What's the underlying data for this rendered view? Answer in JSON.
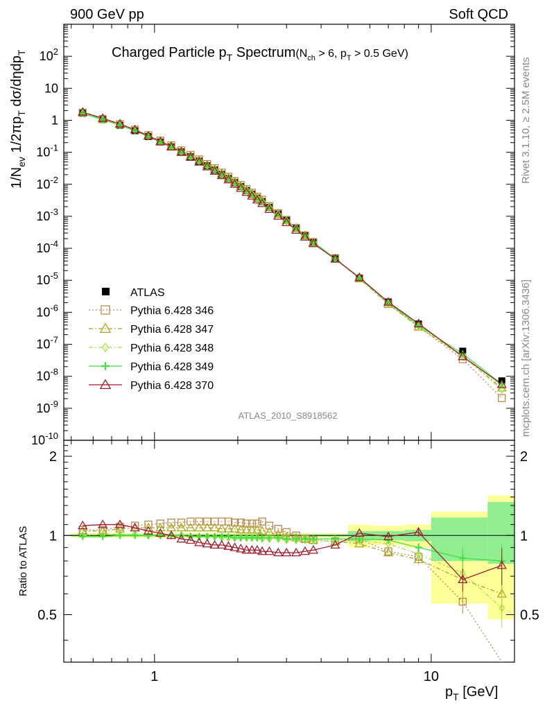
{
  "header": {
    "left": "900 GeV pp",
    "right": "Soft QCD"
  },
  "side_labels": {
    "rivet": "Rivet 3.1.10, ≥ 2.5M events",
    "mcplots": "mcplots.cern.ch [arXiv:1306.3436]"
  },
  "chart_data": {
    "type": "scatter",
    "title": "Charged Particle p_T Spectrum",
    "subtitle": "(N_ch > 6, p_T > 0.5 GeV)",
    "analysis": "ATLAS_2010_S8918562",
    "xlabel": "p_T  [GeV]",
    "ylabel": "1/N_ev 1/2πp_T dσ/dηdp_T",
    "ratio_ylabel": "Ratio to ATLAS",
    "xscale": "log",
    "xlim": [
      0.47,
      20
    ],
    "ylim": [
      1e-10,
      1000
    ],
    "ratio_ylim": [
      0.33,
      2.3
    ],
    "x_ticks": [
      "1",
      "10"
    ],
    "y_ticks": [
      "10^-10",
      "10^-9",
      "10^-8",
      "10^-7",
      "10^-6",
      "10^-5",
      "10^-4",
      "10^-3",
      "10^-2",
      "10^-1",
      "1",
      "10",
      "10^2"
    ],
    "ratio_ticks": [
      "0.5",
      "1",
      "2"
    ],
    "legend_position": "lower-left",
    "x": [
      0.55,
      0.65,
      0.75,
      0.85,
      0.95,
      1.05,
      1.15,
      1.25,
      1.35,
      1.45,
      1.55,
      1.65,
      1.75,
      1.85,
      1.95,
      2.05,
      2.15,
      2.25,
      2.35,
      2.45,
      2.6,
      2.8,
      3.0,
      3.25,
      3.5,
      3.75,
      4.5,
      5.5,
      7.0,
      9.0,
      13.0,
      18.0
    ],
    "atlas": [
      1.65,
      1.05,
      0.7,
      0.47,
      0.31,
      0.21,
      0.147,
      0.103,
      0.073,
      0.053,
      0.038,
      0.028,
      0.0205,
      0.0152,
      0.0113,
      0.0085,
      0.0064,
      0.0049,
      0.0037,
      0.0029,
      0.0019,
      0.00118,
      0.00075,
      0.00043,
      0.00026,
      0.00016,
      5e-05,
      1.2e-05,
      2.1e-06,
      4.3e-07,
      6.1e-08,
      7.2e-09
    ],
    "atlas_band": {
      "edges": [
        0.5,
        5,
        6,
        8,
        10,
        16,
        20
      ],
      "yellow_lo": [
        0.98,
        0.9,
        0.92,
        0.9,
        0.55,
        0.48
      ],
      "yellow_hi": [
        1.02,
        1.1,
        1.09,
        1.1,
        1.23,
        1.42
      ],
      "green_lo": [
        0.99,
        0.95,
        0.96,
        0.95,
        0.8,
        0.78
      ],
      "green_hi": [
        1.01,
        1.04,
        1.04,
        1.05,
        1.17,
        1.34
      ]
    },
    "series": [
      {
        "name": "Pythia 6.428 346",
        "color": "#b8884c",
        "marker": "square",
        "dash": "2,3",
        "ratio": [
          1.05,
          1.05,
          1.08,
          1.09,
          1.1,
          1.11,
          1.12,
          1.12,
          1.13,
          1.13,
          1.13,
          1.13,
          1.13,
          1.13,
          1.12,
          1.12,
          1.11,
          1.11,
          1.11,
          1.13,
          1.09,
          1.06,
          1.03,
          1.0,
          0.97,
          0.96,
          0.95,
          0.97,
          0.87,
          0.83,
          0.56,
          0.29
        ]
      },
      {
        "name": "Pythia 6.428 347",
        "color": "#a8a820",
        "marker": "triangle",
        "dash": "6,3,2,3",
        "ratio": [
          1.04,
          1.04,
          1.06,
          1.07,
          1.07,
          1.07,
          1.07,
          1.07,
          1.07,
          1.07,
          1.07,
          1.07,
          1.06,
          1.06,
          1.06,
          1.05,
          1.05,
          1.05,
          1.05,
          1.04,
          1.03,
          1.01,
          0.99,
          0.98,
          0.97,
          0.96,
          0.95,
          0.93,
          0.86,
          0.81,
          0.68,
          0.6
        ]
      },
      {
        "name": "Pythia 6.428 348",
        "color": "#a8e040",
        "marker": "diamond",
        "dash": "6,3,2,3",
        "ratio": [
          1.0,
          1.01,
          1.01,
          1.01,
          1.0,
          1.0,
          1.0,
          1.0,
          0.99,
          0.99,
          0.99,
          0.99,
          0.98,
          0.98,
          0.98,
          0.98,
          0.98,
          0.98,
          0.98,
          0.97,
          0.97,
          0.97,
          0.96,
          0.96,
          0.96,
          0.96,
          0.95,
          0.96,
          0.93,
          0.85,
          0.72,
          0.53
        ]
      },
      {
        "name": "Pythia 6.428 349",
        "color": "#44dd44",
        "marker": "cross",
        "dash": "",
        "ratio": [
          0.99,
          0.99,
          1.0,
          1.0,
          1.0,
          1.0,
          1.0,
          1.0,
          0.99,
          0.99,
          0.99,
          0.99,
          0.99,
          0.99,
          0.98,
          0.98,
          0.98,
          0.98,
          0.98,
          0.98,
          0.98,
          0.98,
          0.97,
          0.97,
          0.97,
          0.97,
          0.97,
          0.97,
          0.96,
          0.9,
          0.82,
          0.8
        ]
      },
      {
        "name": "Pythia 6.428 370",
        "color": "#9b1c2c",
        "marker": "triangle",
        "dash": "",
        "ratio": [
          1.09,
          1.1,
          1.1,
          1.07,
          1.04,
          1.02,
          1.0,
          0.97,
          0.96,
          0.94,
          0.93,
          0.92,
          0.92,
          0.91,
          0.9,
          0.89,
          0.88,
          0.88,
          0.88,
          0.87,
          0.87,
          0.86,
          0.86,
          0.86,
          0.87,
          0.88,
          0.92,
          1.02,
          0.99,
          1.03,
          0.68,
          0.77
        ]
      }
    ]
  }
}
